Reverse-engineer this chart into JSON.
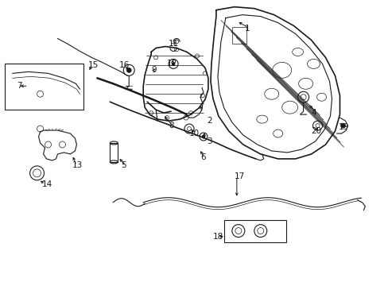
{
  "background_color": "#ffffff",
  "line_color": "#1a1a1a",
  "figsize": [
    4.89,
    3.6
  ],
  "dpi": 100,
  "label_positions": {
    "1": [
      3.08,
      3.25,
      "left"
    ],
    "2": [
      2.6,
      2.08,
      "left"
    ],
    "3": [
      2.6,
      1.82,
      "left"
    ],
    "4": [
      3.92,
      2.18,
      "left"
    ],
    "5": [
      1.52,
      1.52,
      "left"
    ],
    "6": [
      2.52,
      1.62,
      "left"
    ],
    "7": [
      0.2,
      2.52,
      "left"
    ],
    "8": [
      2.12,
      2.02,
      "left"
    ],
    "9": [
      1.9,
      2.72,
      "left"
    ],
    "10": [
      2.38,
      1.92,
      "left"
    ],
    "11": [
      2.12,
      3.05,
      "left"
    ],
    "12": [
      2.1,
      2.8,
      "left"
    ],
    "13": [
      0.9,
      1.52,
      "left"
    ],
    "14": [
      0.52,
      1.28,
      "left"
    ],
    "15": [
      1.1,
      2.78,
      "left"
    ],
    "16": [
      1.5,
      2.78,
      "left"
    ],
    "17": [
      2.95,
      1.38,
      "left"
    ],
    "18": [
      2.68,
      0.62,
      "left"
    ],
    "19": [
      4.26,
      2.0,
      "left"
    ],
    "20": [
      3.92,
      1.95,
      "left"
    ]
  }
}
